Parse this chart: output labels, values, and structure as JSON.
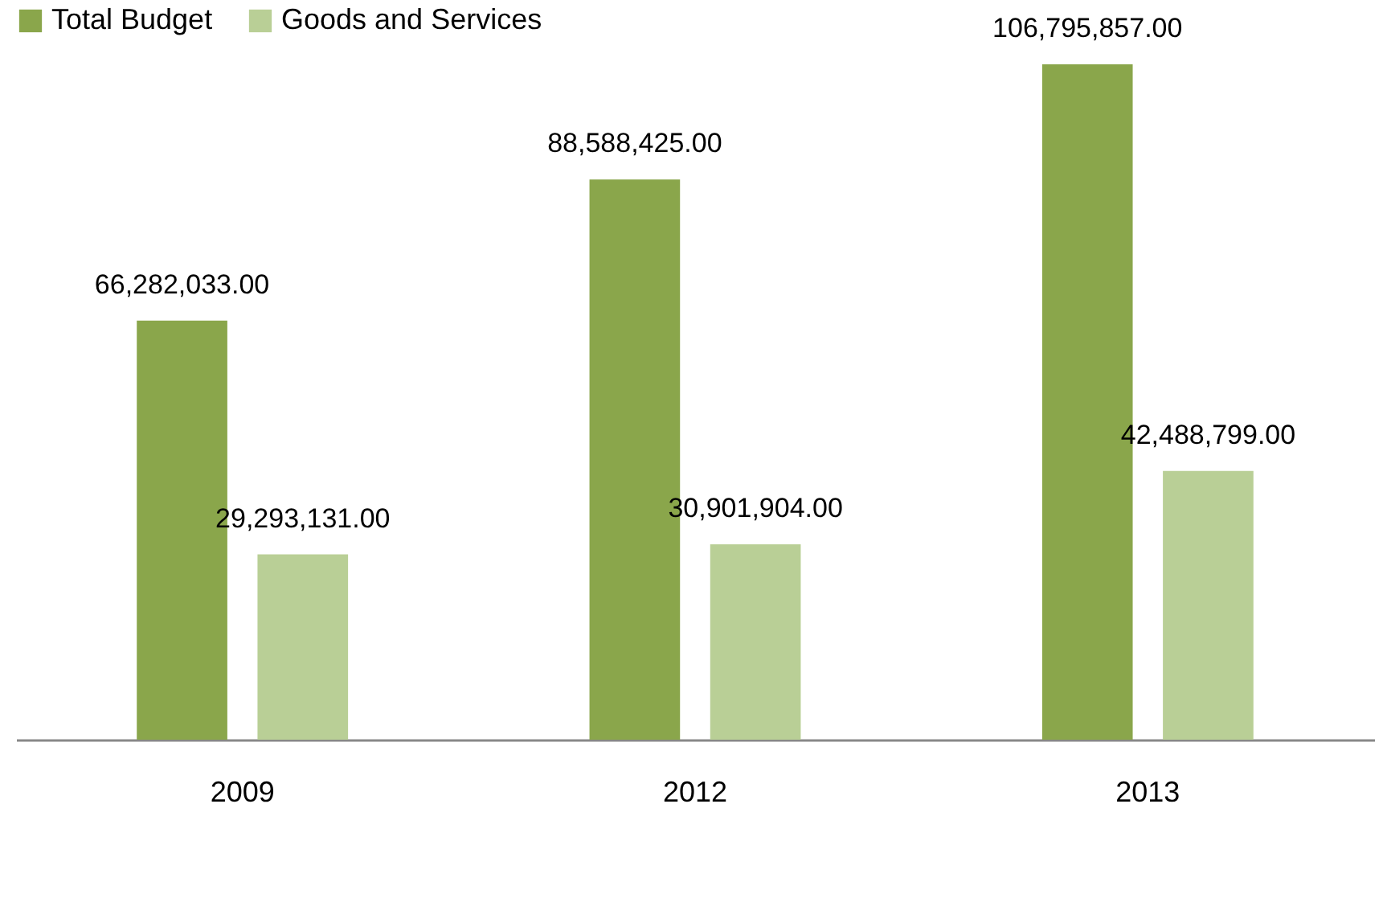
{
  "chart_data": {
    "type": "bar",
    "categories": [
      "2009",
      "2012",
      "2013"
    ],
    "series": [
      {
        "name": "Total Budget",
        "color": "#8aa64b",
        "values": [
          66282033.0,
          88588425.0,
          106795857.0
        ],
        "value_labels": [
          "66,282,033.00",
          "88,588,425.00",
          "106,795,857.00"
        ]
      },
      {
        "name": "Goods and Services",
        "color": "#b9cf96",
        "values": [
          29293131.0,
          30901904.0,
          42488799.0
        ],
        "value_labels": [
          "29,293,131.00",
          "30,901,904.00",
          "42,488,799.00"
        ]
      }
    ],
    "legend": "top",
    "grid": false
  }
}
